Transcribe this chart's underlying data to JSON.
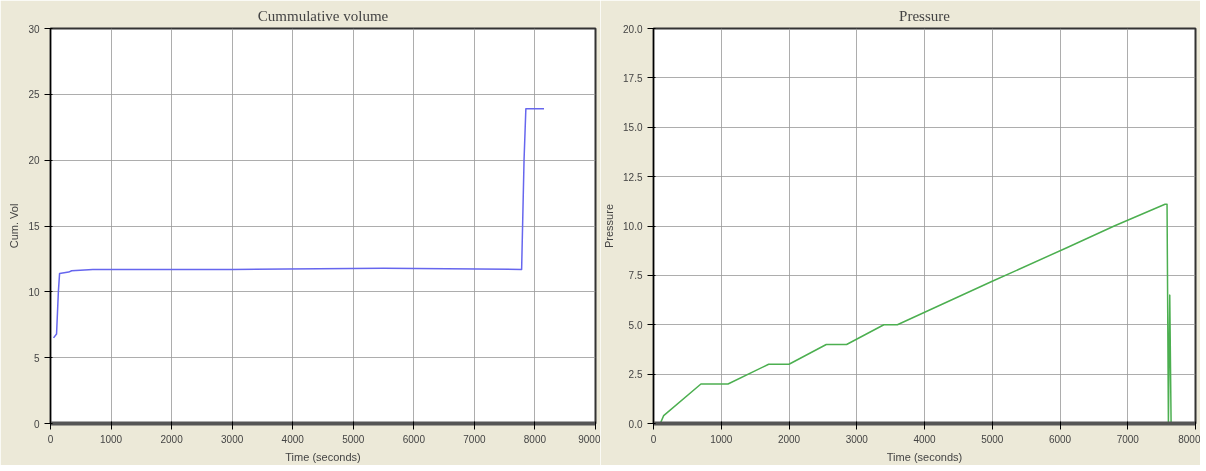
{
  "chart_data": [
    {
      "type": "line",
      "title": "Cummulative volume",
      "xlabel": "Time (seconds)",
      "ylabel": "Cum. Vol",
      "xlim": [
        0,
        9000
      ],
      "xticks": [
        0,
        1000,
        2000,
        3000,
        4000,
        5000,
        6000,
        7000,
        8000,
        9000
      ],
      "ylim": [
        0,
        30
      ],
      "yticks": [
        0,
        5,
        10,
        15,
        20,
        25,
        30
      ],
      "grid": true,
      "series": [
        {
          "color": "#6666ee",
          "x": [
            50,
            100,
            130,
            150,
            300,
            350,
            700,
            3000,
            5500,
            7780,
            7820,
            7850,
            8150
          ],
          "values": [
            6.5,
            6.8,
            10,
            11.4,
            11.5,
            11.6,
            11.7,
            11.7,
            11.8,
            11.7,
            20,
            23.9,
            23.9
          ]
        }
      ]
    },
    {
      "type": "line",
      "title": "Pressure",
      "xlabel": "Time (seconds)",
      "ylabel": "Pressure",
      "xlim": [
        0,
        8000
      ],
      "xticks": [
        0,
        1000,
        2000,
        3000,
        4000,
        5000,
        6000,
        7000,
        8000
      ],
      "ylim": [
        0,
        20
      ],
      "yticks": [
        {
          "value": 0,
          "label": "0.0"
        },
        {
          "value": 2.5,
          "label": "2.5"
        },
        {
          "value": 5,
          "label": "5.0"
        },
        {
          "value": 7.5,
          "label": "7.5"
        },
        {
          "value": 10,
          "label": "10.0"
        },
        {
          "value": 12.5,
          "label": "12.5"
        },
        {
          "value": 15,
          "label": "15.0"
        },
        {
          "value": 17.5,
          "label": "17.5"
        },
        {
          "value": 20,
          "label": "20.0"
        }
      ],
      "grid": true,
      "series": [
        {
          "color": "#4caf50",
          "x": [
            100,
            150,
            700,
            1100,
            1700,
            2000,
            2550,
            2850,
            3400,
            3600,
            5000,
            6100,
            6800,
            7550,
            7580,
            7600,
            7620,
            7640
          ],
          "values": [
            0,
            0.4,
            2,
            2,
            3,
            3,
            4,
            4,
            5,
            5,
            7.2,
            8.9,
            10,
            11.1,
            11.1,
            0,
            6.5,
            0
          ]
        }
      ]
    }
  ]
}
